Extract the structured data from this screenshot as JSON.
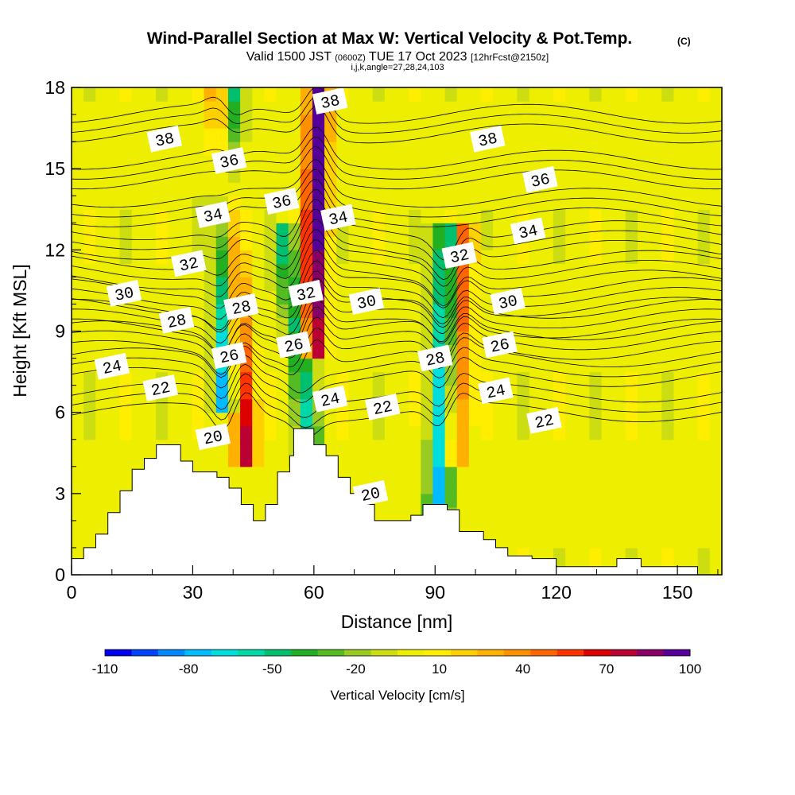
{
  "chart_data": {
    "type": "heatmap",
    "title": "Wind-Parallel Section at Max W: Vertical Velocity & Pot.Temp.",
    "title_mark": "(C)",
    "subtitle": {
      "valid": "Valid 1500 JST",
      "zulu": "(0600Z)",
      "date": "TUE 17 Oct 2023",
      "forecast": "[12hrFcst@2150z]"
    },
    "subtitle2": "i,j,k,angle=27,28,24,103",
    "xlabel": "Distance [nm]",
    "ylabel": "Height [Kft MSL]",
    "xlim": [
      0,
      161
    ],
    "ylim": [
      0,
      18
    ],
    "x_ticks": [
      0,
      30,
      60,
      90,
      120,
      150
    ],
    "y_ticks": [
      0,
      3,
      6,
      9,
      12,
      15,
      18
    ],
    "colorbar": {
      "label": "Vertical Velocity [cm/s]",
      "tick_labels": [
        -110,
        -80,
        -50,
        -20,
        10,
        40,
        70,
        100
      ],
      "levels": [
        -110,
        -100,
        -90,
        -80,
        -70,
        -60,
        -50,
        -40,
        -30,
        -20,
        -10,
        0,
        10,
        20,
        30,
        40,
        50,
        60,
        70,
        80,
        90,
        100
      ],
      "colors": [
        "#0000ee",
        "#0044ff",
        "#0088ff",
        "#00bbff",
        "#00dddd",
        "#00d8a8",
        "#00c070",
        "#22b022",
        "#55bb22",
        "#99cc22",
        "#ccdd11",
        "#eeee00",
        "#ffee00",
        "#ffd000",
        "#ffb000",
        "#ff9000",
        "#ff6600",
        "#ff3300",
        "#dd0000",
        "#bb0033",
        "#880066",
        "#550099"
      ]
    },
    "vertical_velocity_plumes": [
      {
        "x_base": 43,
        "z_base": 5,
        "x_top": 37,
        "z_top": 18,
        "w": 80,
        "label": "updraft"
      },
      {
        "x_base": 38,
        "z_base": 7,
        "x_top": 39,
        "z_top": 18,
        "w": -85,
        "label": "downdraft"
      },
      {
        "x_base": 60,
        "z_base": 9,
        "x_top": 61,
        "z_top": 18,
        "w": 100,
        "label": "updraft"
      },
      {
        "x_base": 59,
        "z_base": 5,
        "x_top": 53,
        "z_top": 12,
        "w": -50,
        "label": "downdraft"
      },
      {
        "x_base": 91,
        "z_base": 3,
        "x_top": 93,
        "z_top": 12,
        "w": -80,
        "label": "downdraft"
      },
      {
        "x_base": 95,
        "z_base": 5,
        "x_top": 97,
        "z_top": 12,
        "w": 55,
        "label": "updraft"
      }
    ],
    "terrain_height_kft": [
      [
        0,
        0.6
      ],
      [
        3,
        0.6
      ],
      [
        3,
        1
      ],
      [
        6,
        1
      ],
      [
        6,
        1.5
      ],
      [
        9,
        1.5
      ],
      [
        9,
        2.3
      ],
      [
        12,
        2.3
      ],
      [
        12,
        3.1
      ],
      [
        15,
        3.1
      ],
      [
        15,
        3.9
      ],
      [
        18,
        3.9
      ],
      [
        18,
        4.3
      ],
      [
        21,
        4.3
      ],
      [
        21,
        4.8
      ],
      [
        27,
        4.8
      ],
      [
        27,
        4.2
      ],
      [
        30,
        4.2
      ],
      [
        30,
        3.8
      ],
      [
        36,
        3.8
      ],
      [
        36,
        3.6
      ],
      [
        39,
        3.6
      ],
      [
        39,
        3.2
      ],
      [
        42,
        3.2
      ],
      [
        42,
        2.6
      ],
      [
        45,
        2.6
      ],
      [
        45,
        2
      ],
      [
        48,
        2
      ],
      [
        48,
        2.6
      ],
      [
        51,
        2.6
      ],
      [
        51,
        3.8
      ],
      [
        54,
        3.8
      ],
      [
        54,
        4.4
      ],
      [
        55,
        4.4
      ],
      [
        55,
        5.4
      ],
      [
        60,
        5.4
      ],
      [
        60,
        4.8
      ],
      [
        63,
        4.8
      ],
      [
        63,
        4.4
      ],
      [
        66,
        4.4
      ],
      [
        66,
        3.6
      ],
      [
        69,
        3.6
      ],
      [
        69,
        3
      ],
      [
        72,
        3
      ],
      [
        72,
        2.6
      ],
      [
        75,
        2.6
      ],
      [
        75,
        2
      ],
      [
        84,
        2
      ],
      [
        84,
        2.2
      ],
      [
        87,
        2.2
      ],
      [
        87,
        2.6
      ],
      [
        93,
        2.6
      ],
      [
        93,
        2.4
      ],
      [
        96,
        2.4
      ],
      [
        96,
        1.6
      ],
      [
        102,
        1.6
      ],
      [
        102,
        1.3
      ],
      [
        105,
        1.3
      ],
      [
        105,
        1
      ],
      [
        108,
        1
      ],
      [
        108,
        0.7
      ],
      [
        114,
        0.7
      ],
      [
        114,
        0.6
      ],
      [
        120,
        0.6
      ],
      [
        120,
        0.3
      ],
      [
        135,
        0.3
      ],
      [
        135,
        0.6
      ],
      [
        141,
        0.6
      ],
      [
        141,
        0.3
      ],
      [
        155,
        0.3
      ],
      [
        155,
        0
      ],
      [
        161,
        0
      ]
    ],
    "isentropes": [
      {
        "theta": 20,
        "base_z": 6.0,
        "label_positions": [
          [
            35,
            5.1
          ],
          [
            74,
            3
          ]
        ]
      },
      {
        "theta": 22,
        "base_z": 7.3,
        "label_positions": [
          [
            22,
            6.9
          ],
          [
            77,
            6.2
          ],
          [
            117,
            5.7
          ]
        ]
      },
      {
        "theta": 24,
        "base_z": 8.3,
        "label_positions": [
          [
            10,
            7.7
          ],
          [
            64,
            6.5
          ],
          [
            105,
            6.8
          ]
        ]
      },
      {
        "theta": 26,
        "base_z": 9.1,
        "label_positions": [
          [
            39,
            8.1
          ],
          [
            55,
            8.5
          ],
          [
            106,
            8.5
          ]
        ]
      },
      {
        "theta": 28,
        "base_z": 9.9,
        "label_positions": [
          [
            26,
            9.4
          ],
          [
            42,
            9.9
          ],
          [
            90,
            8
          ]
        ]
      },
      {
        "theta": 30,
        "base_z": 10.9,
        "label_positions": [
          [
            13,
            10.4
          ],
          [
            73,
            10.1
          ],
          [
            108,
            10.1
          ]
        ]
      },
      {
        "theta": 32,
        "base_z": 12.0,
        "label_positions": [
          [
            29,
            11.5
          ],
          [
            58,
            10.4
          ],
          [
            96,
            11.8
          ]
        ]
      },
      {
        "theta": 34,
        "base_z": 13.2,
        "label_positions": [
          [
            35,
            13.3
          ],
          [
            66,
            13.2
          ],
          [
            113,
            12.7
          ]
        ]
      },
      {
        "theta": 36,
        "base_z": 14.6,
        "label_positions": [
          [
            39,
            15.3
          ],
          [
            52,
            13.8
          ],
          [
            116,
            14.6
          ]
        ]
      },
      {
        "theta": 38,
        "base_z": 16.3,
        "label_positions": [
          [
            23,
            16.1
          ],
          [
            64,
            17.5
          ],
          [
            103,
            16.1
          ]
        ]
      }
    ]
  }
}
